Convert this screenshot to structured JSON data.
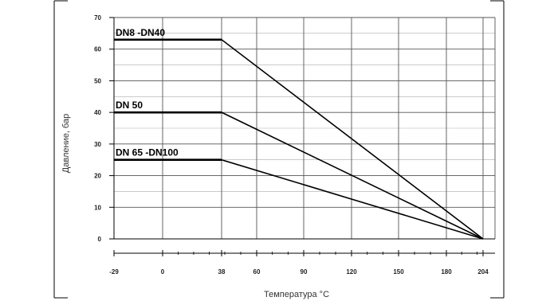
{
  "chart_data": {
    "type": "line",
    "xlabel_text": "Температура ",
    "xlabel_unit": "°C",
    "ylabel": "Давление, бар",
    "ylim": [
      0,
      70
    ],
    "y_ticks": [
      "0",
      "10",
      "20",
      "30",
      "40",
      "50",
      "60",
      "70"
    ],
    "x_ticks": [
      "-29",
      "0",
      "38",
      "60",
      "90",
      "120",
      "150",
      "180",
      "204"
    ],
    "grid": true,
    "series": [
      {
        "name": "DN8 -DN40",
        "points": [
          [
            -29,
            63
          ],
          [
            38,
            63
          ],
          [
            204,
            0
          ]
        ]
      },
      {
        "name": "DN 50",
        "points": [
          [
            -29,
            40
          ],
          [
            38,
            40
          ],
          [
            204,
            0
          ]
        ]
      },
      {
        "name": "DN 65 -DN100",
        "points": [
          [
            -29,
            25
          ],
          [
            38,
            25
          ],
          [
            204,
            0
          ]
        ]
      }
    ]
  }
}
